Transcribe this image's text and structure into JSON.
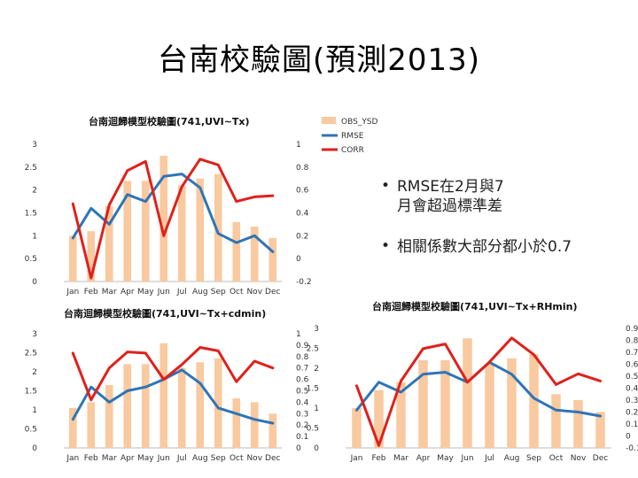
{
  "slide": {
    "title": "台南校驗圖(預測2013)",
    "bullets": [
      "RMSE在2月與7\n月會超過標準差",
      "相關係數大部分都小於0.7"
    ]
  },
  "legend": [
    "OBS_YSD",
    "RMSE",
    "CORR"
  ],
  "colors": {
    "bar": "#f9c9a0",
    "rmse": "#2e75b6",
    "corr": "#e0201b"
  },
  "chart_data": [
    {
      "type": "bar",
      "title": "台南迴歸模型校驗圖(741,UVI~Tx)",
      "categories": [
        "Jan",
        "Feb",
        "Mar",
        "Apr",
        "May",
        "Jun",
        "Jul",
        "Aug",
        "Sep",
        "Oct",
        "Nov",
        "Dec"
      ],
      "ylim": [
        0,
        3
      ],
      "y2lim": [
        -0.2,
        1
      ],
      "yticks": [
        "0",
        "0.5",
        "1",
        "1.5",
        "2",
        "2.5",
        "3"
      ],
      "y2ticks": [
        "-0.2",
        "0",
        "0.2",
        "0.4",
        "0.6",
        "0.8",
        "1"
      ],
      "series": [
        {
          "name": "OBS_YSD",
          "axis": "left",
          "kind": "bar",
          "values": [
            1.0,
            1.1,
            1.65,
            2.2,
            2.2,
            2.75,
            2.1,
            2.25,
            2.35,
            1.3,
            1.2,
            0.95
          ]
        },
        {
          "name": "RMSE",
          "axis": "left",
          "kind": "line",
          "values": [
            0.95,
            1.6,
            1.25,
            1.9,
            1.75,
            2.3,
            2.35,
            2.05,
            1.05,
            0.85,
            1.0,
            0.65
          ]
        },
        {
          "name": "CORR",
          "axis": "right",
          "kind": "line",
          "values": [
            0.48,
            -0.17,
            0.47,
            0.77,
            0.85,
            0.2,
            0.63,
            0.87,
            0.82,
            0.5,
            0.54,
            0.55
          ]
        }
      ]
    },
    {
      "type": "bar",
      "title": "台南迴歸模型校驗圖(741,UVI~Tx+cdmin)",
      "categories": [
        "Jan",
        "Feb",
        "Mar",
        "Apr",
        "May",
        "Jun",
        "Jul",
        "Aug",
        "Sep",
        "Oct",
        "Nov",
        "Dec"
      ],
      "ylim": [
        0,
        3
      ],
      "y2lim": [
        0,
        1
      ],
      "yticks": [
        "0",
        "0.5",
        "1",
        "1.5",
        "2",
        "2.5",
        "3"
      ],
      "y2ticks": [
        "0",
        "0.1",
        "0.2",
        "0.3",
        "0.4",
        "0.5",
        "0.6",
        "0.7",
        "0.8",
        "0.9",
        "1"
      ],
      "series": [
        {
          "name": "OBS_YSD",
          "axis": "left",
          "kind": "bar",
          "values": [
            1.05,
            1.2,
            1.65,
            2.2,
            2.2,
            2.75,
            2.1,
            2.25,
            2.35,
            1.3,
            1.2,
            0.9
          ]
        },
        {
          "name": "RMSE",
          "axis": "left",
          "kind": "line",
          "values": [
            0.75,
            1.6,
            1.2,
            1.5,
            1.6,
            1.8,
            2.05,
            1.7,
            1.05,
            0.9,
            0.75,
            0.65
          ]
        },
        {
          "name": "CORR",
          "axis": "right",
          "kind": "line",
          "values": [
            0.83,
            0.42,
            0.7,
            0.84,
            0.83,
            0.6,
            0.73,
            0.88,
            0.85,
            0.58,
            0.76,
            0.7
          ]
        }
      ]
    },
    {
      "type": "bar",
      "title": "台南迴歸模型校驗圖(741,UVI~Tx+RHmin)",
      "categories": [
        "Jan",
        "Feb",
        "Mar",
        "Apr",
        "May",
        "Jun",
        "Jul",
        "Aug",
        "Sep",
        "Oct",
        "Nov",
        "Dec"
      ],
      "ylim": [
        0,
        3
      ],
      "y2lim": [
        -0.1,
        0.9
      ],
      "yticks": [
        "0",
        "0.5",
        "1",
        "1.5",
        "2",
        "2.5",
        "3"
      ],
      "y2ticks": [
        "-0.1",
        "0",
        "0.1",
        "0.2",
        "0.3",
        "0.4",
        "0.5",
        "0.6",
        "0.7",
        "0.8",
        "0.9"
      ],
      "series": [
        {
          "name": "OBS_YSD",
          "axis": "left",
          "kind": "bar",
          "values": [
            1.0,
            1.45,
            1.65,
            2.2,
            2.2,
            2.75,
            2.1,
            2.25,
            2.35,
            1.35,
            1.2,
            0.9
          ]
        },
        {
          "name": "RMSE",
          "axis": "left",
          "kind": "line",
          "values": [
            0.95,
            1.65,
            1.4,
            1.85,
            1.9,
            1.65,
            2.15,
            1.85,
            1.25,
            0.95,
            0.9,
            0.8
          ]
        },
        {
          "name": "CORR",
          "axis": "right",
          "kind": "line",
          "values": [
            0.42,
            -0.08,
            0.46,
            0.73,
            0.77,
            0.45,
            0.62,
            0.82,
            0.68,
            0.43,
            0.52,
            0.46
          ]
        }
      ]
    }
  ]
}
